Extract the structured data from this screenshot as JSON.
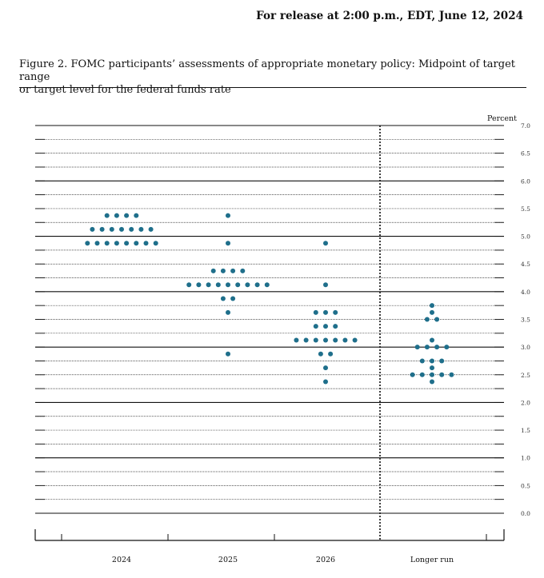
{
  "header": {
    "release_text": "For release at 2:00 p.m., EDT, June 12, 2024"
  },
  "figure": {
    "caption_line1": "Figure 2.  FOMC participants’ assessments of appropriate monetary policy:  Midpoint of target range",
    "caption_line2": "or target level for the federal funds rate"
  },
  "chart_data": {
    "type": "scatter",
    "ylabel": "Percent",
    "ylim": [
      0.0,
      7.0
    ],
    "ytick_labels": [
      "0.0",
      "0.5",
      "1.0",
      "1.5",
      "2.0",
      "2.5",
      "3.0",
      "3.5",
      "4.0",
      "4.5",
      "5.0",
      "5.5",
      "6.0",
      "6.5",
      "7.0"
    ],
    "categories": [
      "2024",
      "2025",
      "2026",
      "Longer run"
    ],
    "grid": true,
    "dot_color": "#1f6f8b",
    "series": [
      {
        "x": "2024",
        "points": [
          {
            "y": 5.375,
            "count": 4
          },
          {
            "y": 5.125,
            "count": 7
          },
          {
            "y": 4.875,
            "count": 8
          }
        ]
      },
      {
        "x": "2025",
        "points": [
          {
            "y": 5.375,
            "count": 1
          },
          {
            "y": 4.875,
            "count": 1
          },
          {
            "y": 4.375,
            "count": 4
          },
          {
            "y": 4.125,
            "count": 9
          },
          {
            "y": 3.875,
            "count": 2
          },
          {
            "y": 3.625,
            "count": 1
          },
          {
            "y": 2.875,
            "count": 1
          }
        ]
      },
      {
        "x": "2026",
        "points": [
          {
            "y": 4.875,
            "count": 1
          },
          {
            "y": 4.125,
            "count": 1
          },
          {
            "y": 3.625,
            "count": 3
          },
          {
            "y": 3.375,
            "count": 3
          },
          {
            "y": 3.125,
            "count": 7
          },
          {
            "y": 2.875,
            "count": 2
          },
          {
            "y": 2.625,
            "count": 1
          },
          {
            "y": 2.375,
            "count": 1
          }
        ]
      },
      {
        "x": "Longer run",
        "points": [
          {
            "y": 3.75,
            "count": 1
          },
          {
            "y": 3.625,
            "count": 1
          },
          {
            "y": 3.5,
            "count": 2
          },
          {
            "y": 3.125,
            "count": 1
          },
          {
            "y": 3.0,
            "count": 4
          },
          {
            "y": 2.75,
            "count": 3
          },
          {
            "y": 2.625,
            "count": 1
          },
          {
            "y": 2.5,
            "count": 5
          },
          {
            "y": 2.375,
            "count": 1
          }
        ]
      }
    ]
  }
}
